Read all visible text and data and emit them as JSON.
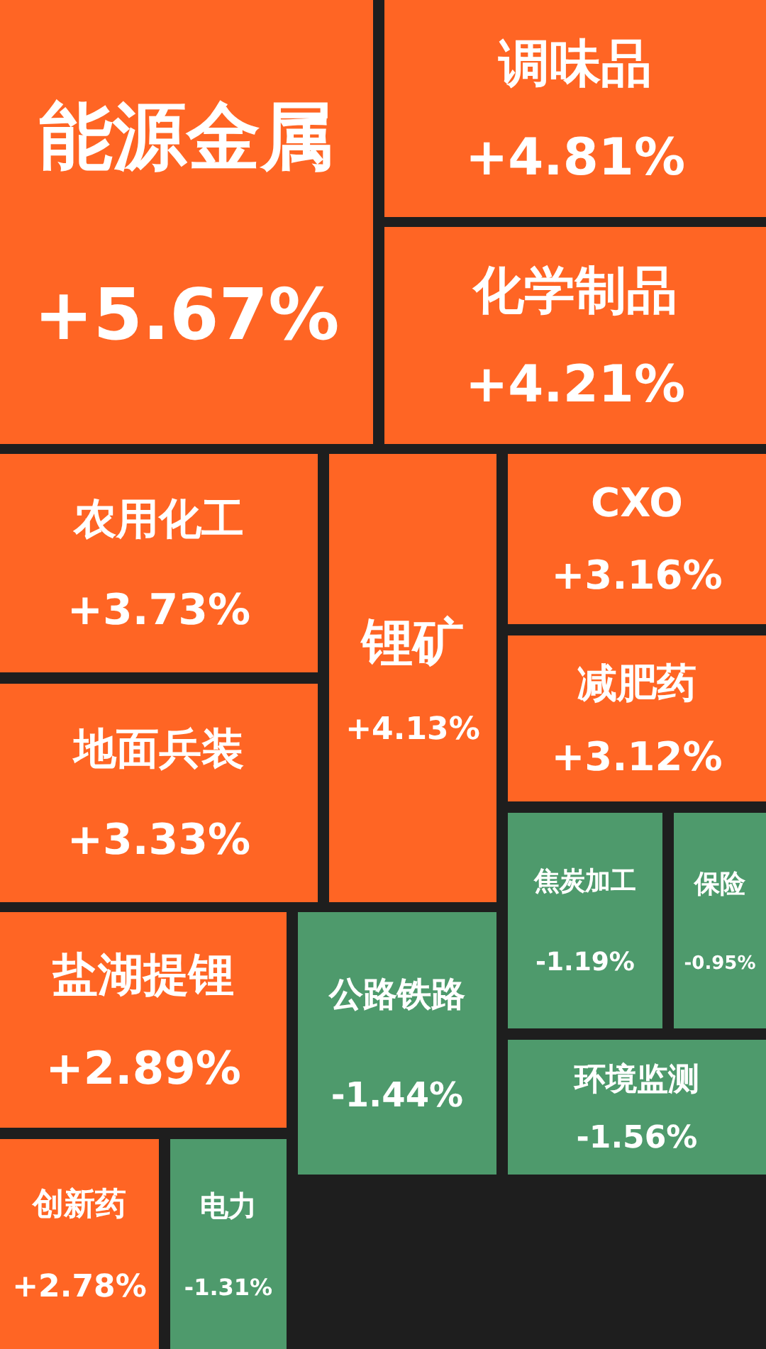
{
  "chart_data": {
    "type": "other",
    "categories": [
      "能源金属",
      "调味品",
      "化学制品",
      "农用化工",
      "地面兵装",
      "锂矿",
      "CXO",
      "减肥药",
      "焦炭加工",
      "保险",
      "环境监测",
      "盐湖提锂",
      "公路铁路",
      "创新药",
      "电力"
    ],
    "values": [
      5.67,
      4.81,
      4.21,
      3.73,
      3.33,
      4.13,
      3.16,
      3.12,
      -1.19,
      -0.95,
      -1.56,
      2.89,
      -1.44,
      2.78,
      -1.31
    ],
    "value_labels": [
      "+5.67%",
      "+4.81%",
      "+4.21%",
      "+3.73%",
      "+3.33%",
      "+4.13%",
      "+3.16%",
      "+3.12%",
      "-1.19%",
      "-0.95%",
      "-1.56%",
      "+2.89%",
      "-1.44%",
      "+2.78%",
      "-1.31%"
    ],
    "colors": [
      "#ff6524",
      "#ff6524",
      "#ff6524",
      "#ff6524",
      "#ff6524",
      "#ff6524",
      "#ff6524",
      "#ff6524",
      "#4e9a6c",
      "#4e9a6c",
      "#4e9a6c",
      "#ff6524",
      "#4e9a6c",
      "#ff6524",
      "#4e9a6c"
    ]
  }
}
